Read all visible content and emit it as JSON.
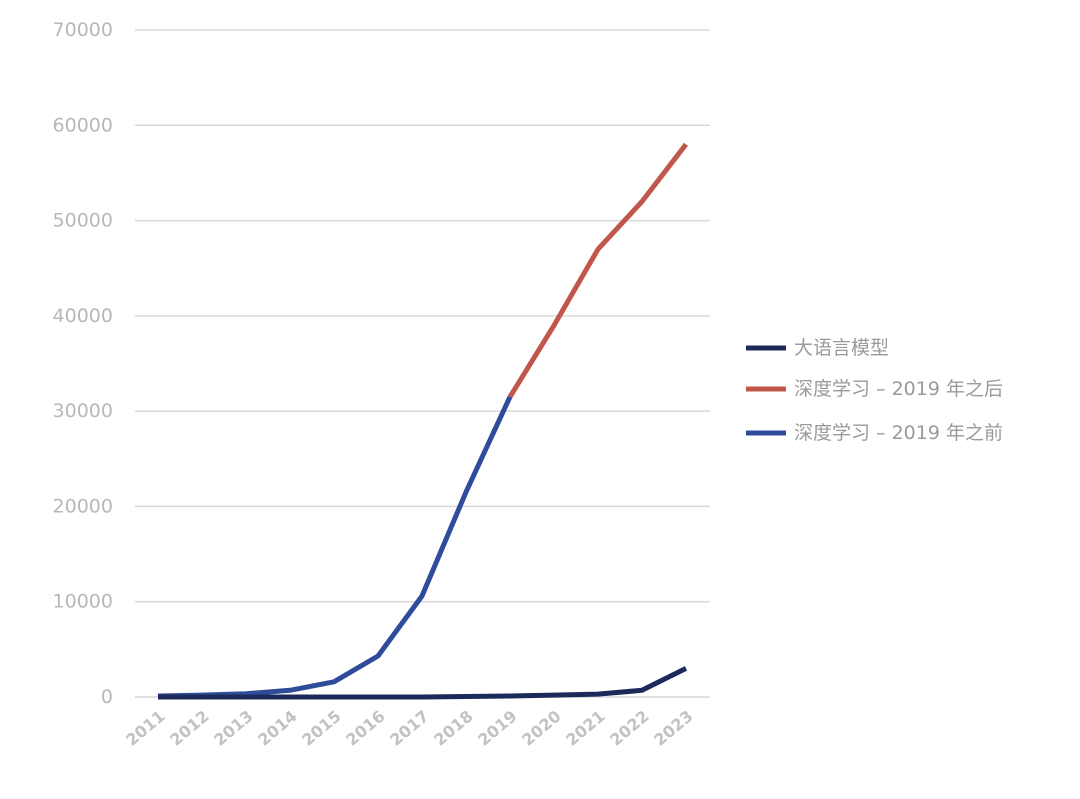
{
  "chart_data": {
    "type": "line",
    "title": "",
    "xlabel": "",
    "ylabel": "",
    "categories": [
      "2011",
      "2012",
      "2013",
      "2014",
      "2015",
      "2016",
      "2017",
      "2018",
      "2019",
      "2020",
      "2021",
      "2022",
      "2023"
    ],
    "ylim": [
      0,
      70000
    ],
    "yticks": [
      "0",
      "10000",
      "20000",
      "30000",
      "40000",
      "50000",
      "60000",
      "70000"
    ],
    "grid": true,
    "legend_position": "right",
    "series": [
      {
        "name": "大语言模型",
        "color": "#1c2a5a",
        "values": [
          0,
          0,
          0,
          0,
          0,
          0,
          0,
          50,
          100,
          200,
          300,
          700,
          3000
        ]
      },
      {
        "name": "深度学习 – 2019 年之后",
        "color": "#c0574a",
        "values": [
          null,
          null,
          null,
          null,
          null,
          null,
          null,
          null,
          31500,
          39000,
          47000,
          52000,
          58000
        ]
      },
      {
        "name": "深度学习 – 2019 年之前",
        "color": "#2e4c9a",
        "values": [
          100,
          200,
          350,
          700,
          1600,
          4300,
          10600,
          21500,
          31500,
          null,
          null,
          null,
          null
        ]
      }
    ]
  }
}
